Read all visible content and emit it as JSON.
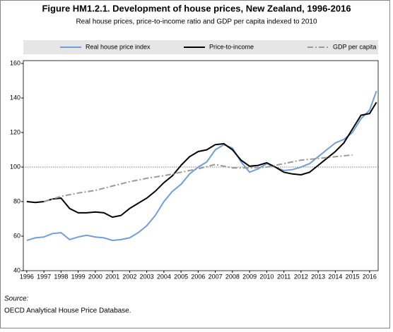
{
  "chart_data": {
    "type": "line",
    "title": "Figure HM1.2.1. Development of house prices, New Zealand, 1996-2016",
    "subtitle": "Real house prices, price-to-income ratio and GDP per capita indexed to 2010",
    "source_label": "Source:",
    "source": "OECD Analytical House Price Database.",
    "xlim": [
      1995.8,
      2016.5
    ],
    "xticks": [
      1996,
      1997,
      1998,
      1999,
      2000,
      2001,
      2002,
      2003,
      2004,
      2005,
      2006,
      2007,
      2008,
      2009,
      2010,
      2011,
      2012,
      2013,
      2014,
      2015,
      2016
    ],
    "ylim": [
      40,
      160
    ],
    "yticks": [
      40,
      60,
      80,
      100,
      120,
      140,
      160
    ],
    "reference_line": 100,
    "series": [
      {
        "name": "Real house price index",
        "color": "#6f9fd8",
        "style": "solid",
        "x": [
          1996,
          1996.5,
          1997,
          1997.5,
          1998,
          1998.5,
          1999,
          1999.5,
          2000,
          2000.5,
          2001,
          2001.5,
          2002,
          2002.5,
          2003,
          2003.5,
          2004,
          2004.5,
          2005,
          2005.5,
          2006,
          2006.5,
          2007,
          2007.5,
          2008,
          2008.5,
          2009,
          2009.5,
          2010,
          2010.5,
          2011,
          2011.5,
          2012,
          2012.5,
          2013,
          2013.5,
          2014,
          2014.5,
          2015,
          2015.5,
          2016,
          2016.4
        ],
        "values": [
          57.5,
          59,
          59.5,
          61.5,
          62,
          58,
          59.5,
          60.5,
          59.5,
          59,
          57.5,
          58,
          59,
          62,
          66,
          72,
          80,
          86,
          90,
          96,
          100,
          103,
          110,
          113,
          111,
          103,
          97,
          99,
          102,
          100,
          98,
          98.5,
          100,
          102,
          106,
          110,
          114,
          116,
          120,
          128,
          133,
          144
        ]
      },
      {
        "name": "Price-to-income",
        "color": "#000000",
        "style": "solid",
        "x": [
          1996,
          1996.5,
          1997,
          1997.5,
          1998,
          1998.5,
          1999,
          1999.5,
          2000,
          2000.5,
          2001,
          2001.5,
          2002,
          2002.5,
          2003,
          2003.5,
          2004,
          2004.5,
          2005,
          2005.5,
          2006,
          2006.5,
          2007,
          2007.5,
          2008,
          2008.5,
          2009,
          2009.5,
          2010,
          2010.5,
          2011,
          2011.5,
          2012,
          2012.5,
          2013,
          2013.5,
          2014,
          2014.5,
          2015,
          2015.5,
          2016,
          2016.4
        ],
        "values": [
          80,
          79.5,
          80,
          81.5,
          82,
          76,
          73.5,
          73.5,
          74,
          73.5,
          71,
          72,
          76,
          79,
          82,
          86,
          91,
          95,
          101,
          106,
          109,
          110,
          113,
          113.5,
          110,
          104,
          100.5,
          101,
          102.5,
          100,
          97,
          96,
          95.5,
          97,
          101,
          105,
          109,
          114,
          122,
          130,
          131,
          137.5
        ]
      },
      {
        "name": "GDP per capita",
        "color": "#9a9a9a",
        "style": "dashdot",
        "x": [
          1997,
          1998,
          1999,
          2000,
          2001,
          2002,
          2003,
          2004,
          2005,
          2006,
          2007,
          2008,
          2009,
          2010,
          2011,
          2012,
          2013,
          2014,
          2015
        ],
        "values": [
          80,
          83,
          85,
          86.5,
          89,
          91.5,
          93.5,
          95,
          97,
          99,
          101.5,
          99.5,
          99.5,
          100,
          102,
          104,
          105,
          106,
          107
        ]
      }
    ]
  }
}
